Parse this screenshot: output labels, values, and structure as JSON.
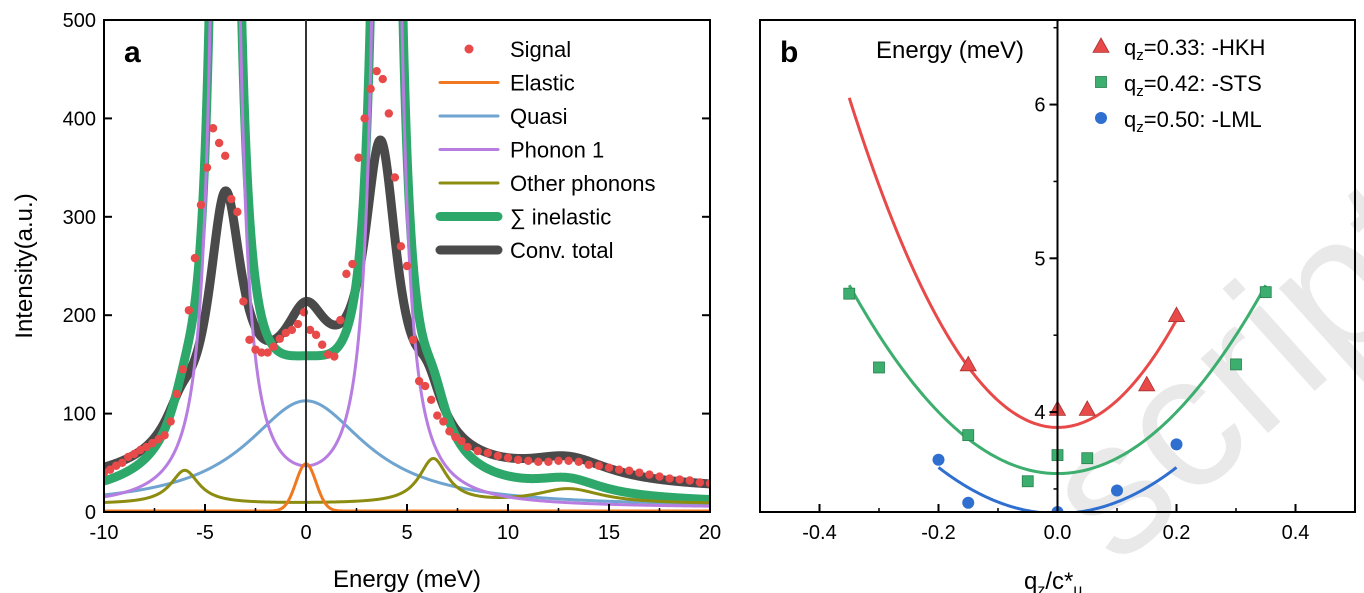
{
  "watermark": "script",
  "chart_data": [
    {
      "panel": "a",
      "type": "line",
      "xlabel": "Energy (meV)",
      "ylabel": "Intensity(a.u.)",
      "xlim": [
        -10,
        20
      ],
      "ylim": [
        0,
        500
      ],
      "xticks": [
        -10,
        -5,
        0,
        5,
        10,
        15,
        20
      ],
      "yticks": [
        0,
        100,
        200,
        300,
        400,
        500
      ],
      "legend_position": "top-right",
      "series": [
        {
          "name": "Signal",
          "kind": "scatter",
          "color": "#e84a4a",
          "x": [
            -10,
            -9.7,
            -9.4,
            -9.1,
            -8.8,
            -8.5,
            -8.2,
            -7.9,
            -7.6,
            -7.3,
            -7,
            -6.7,
            -6.4,
            -6.1,
            -5.8,
            -5.5,
            -5.2,
            -4.9,
            -4.6,
            -4.3,
            -4.0,
            -3.7,
            -3.4,
            -3.1,
            -2.8,
            -2.5,
            -2.2,
            -1.9,
            -1.6,
            -1.3,
            -1,
            -0.7,
            -0.4,
            -0.1,
            0.2,
            0.5,
            0.8,
            1.1,
            1.4,
            1.7,
            2,
            2.3,
            2.6,
            2.9,
            3.2,
            3.5,
            3.8,
            4.1,
            4.4,
            4.7,
            5,
            5.3,
            5.6,
            5.9,
            6.2,
            6.5,
            6.8,
            7.1,
            7.4,
            7.7,
            8,
            8.5,
            9,
            9.5,
            10,
            10.5,
            11,
            11.5,
            12,
            12.5,
            13,
            13.5,
            14,
            14.5,
            15,
            15.5,
            16,
            16.5,
            17,
            17.5,
            18,
            18.5,
            19,
            19.5,
            20
          ],
          "y": [
            40,
            43,
            47,
            50,
            56,
            59,
            63,
            66,
            70,
            74,
            78,
            92,
            120,
            145,
            205,
            258,
            312,
            350,
            390,
            375,
            362,
            318,
            305,
            214,
            175,
            165,
            162,
            162,
            168,
            176,
            182,
            185,
            191,
            203,
            185,
            180,
            170,
            160,
            158,
            195,
            242,
            252,
            360,
            400,
            430,
            448,
            440,
            405,
            340,
            270,
            250,
            175,
            133,
            128,
            114,
            98,
            92,
            82,
            76,
            72,
            66,
            62,
            60,
            57,
            55,
            53,
            52,
            51,
            51,
            52,
            52,
            51,
            48,
            47,
            45,
            43,
            42,
            40,
            38,
            36,
            34,
            33,
            32,
            30,
            29
          ]
        },
        {
          "name": "Elastic",
          "kind": "line",
          "color": "#f07820",
          "width": 3
        },
        {
          "name": "Quasi",
          "kind": "line",
          "color": "#6fa4d0",
          "width": 3
        },
        {
          "name": "Phonon 1",
          "kind": "line",
          "color": "#b77de0",
          "width": 3
        },
        {
          "name": "Other phonons",
          "kind": "line",
          "color": "#8c8c10",
          "width": 3
        },
        {
          "name": "∑ inelastic",
          "kind": "line",
          "color": "#2ea86a",
          "width": 9
        },
        {
          "name": "Conv. total",
          "kind": "line",
          "color": "#4a4a4a",
          "width": 9
        }
      ],
      "model": {
        "elastic": {
          "amp": 48,
          "center": 0,
          "sigma": 0.5
        },
        "quasi": {
          "amp": 108,
          "center": 0,
          "gamma": 3.6
        },
        "phonon1": [
          {
            "amp": 2400,
            "center": -4,
            "gamma": 0.38
          },
          {
            "amp": 2400,
            "center": 4,
            "gamma": 0.38
          }
        ],
        "other": [
          {
            "amp": 34,
            "center": -6,
            "gamma": 0.85
          },
          {
            "amp": 45,
            "center": 6.3,
            "gamma": 0.85
          },
          {
            "amp": 15,
            "center": 13,
            "gamma": 2.0
          }
        ],
        "other_baseline": 8,
        "total_peaks": [
          {
            "amp": 240,
            "center": -4,
            "gamma": 1.0
          },
          {
            "amp": 285,
            "center": 3.7,
            "gamma": 1.0
          },
          {
            "amp": 30,
            "center": -6.2,
            "gamma": 0.9
          },
          {
            "amp": 48,
            "center": 6.0,
            "gamma": 0.9
          },
          {
            "amp": 60,
            "center": 0,
            "gamma": 1.2
          },
          {
            "amp": 22,
            "center": 13,
            "gamma": 2.5
          }
        ],
        "total_baseline": 20
      }
    },
    {
      "panel": "b",
      "type": "scatter",
      "xlabel": "q_z/c*_u",
      "ylabel": "Energy (meV)",
      "xlim": [
        -0.5,
        0.5
      ],
      "ylim": [
        3.35,
        6.55
      ],
      "xticks": [
        -0.4,
        -0.2,
        0.0,
        0.2,
        0.4
      ],
      "yticks": [
        4,
        5,
        6
      ],
      "legend_position": "top-right",
      "series": [
        {
          "name": "q_z=0.33: -HKH",
          "label_main": "=0.33: -HKH",
          "marker": "triangle",
          "color": "#e84a4a",
          "x": [
            -0.15,
            0.0,
            0.05,
            0.15,
            0.2
          ],
          "y": [
            4.31,
            4.02,
            4.02,
            4.18,
            4.63
          ],
          "fit": {
            "x_range": [
              -0.35,
              0.2
            ],
            "a": 17.5,
            "c": 3.9
          }
        },
        {
          "name": "q_z=0.42: -STS",
          "label_main": "=0.42: -STS",
          "marker": "square",
          "color": "#3cae6e",
          "x": [
            -0.35,
            -0.3,
            -0.15,
            -0.05,
            0.0,
            0.05,
            0.3,
            0.35
          ],
          "y": [
            4.77,
            4.29,
            3.85,
            3.55,
            3.72,
            3.7,
            4.31,
            4.78
          ],
          "fit": {
            "x_range": [
              -0.35,
              0.35
            ],
            "a": 10.0,
            "c": 3.6
          }
        },
        {
          "name": "q_z=0.50: -LML",
          "label_main": "=0.50: -LML",
          "marker": "circle",
          "color": "#2f6fd0",
          "x": [
            -0.2,
            -0.15,
            0.0,
            0.1,
            0.2
          ],
          "y": [
            3.69,
            3.41,
            3.35,
            3.49,
            3.79
          ],
          "fit": {
            "x_range": [
              -0.2,
              0.2
            ],
            "a": 7.5,
            "c": 3.34
          }
        }
      ]
    }
  ],
  "labels": {
    "a_panel": "a",
    "b_panel": "b",
    "a_xlabel": "Energy (meV)",
    "a_ylabel": "Intensity(a.u.)",
    "b_ylabel": "Energy (meV)",
    "b_xlabel_q": "q",
    "b_xlabel_sub": "z",
    "b_xlabel_rest": "/c*",
    "b_xlabel_sub2": "u",
    "q_letter": "q",
    "q_sub": "z"
  }
}
